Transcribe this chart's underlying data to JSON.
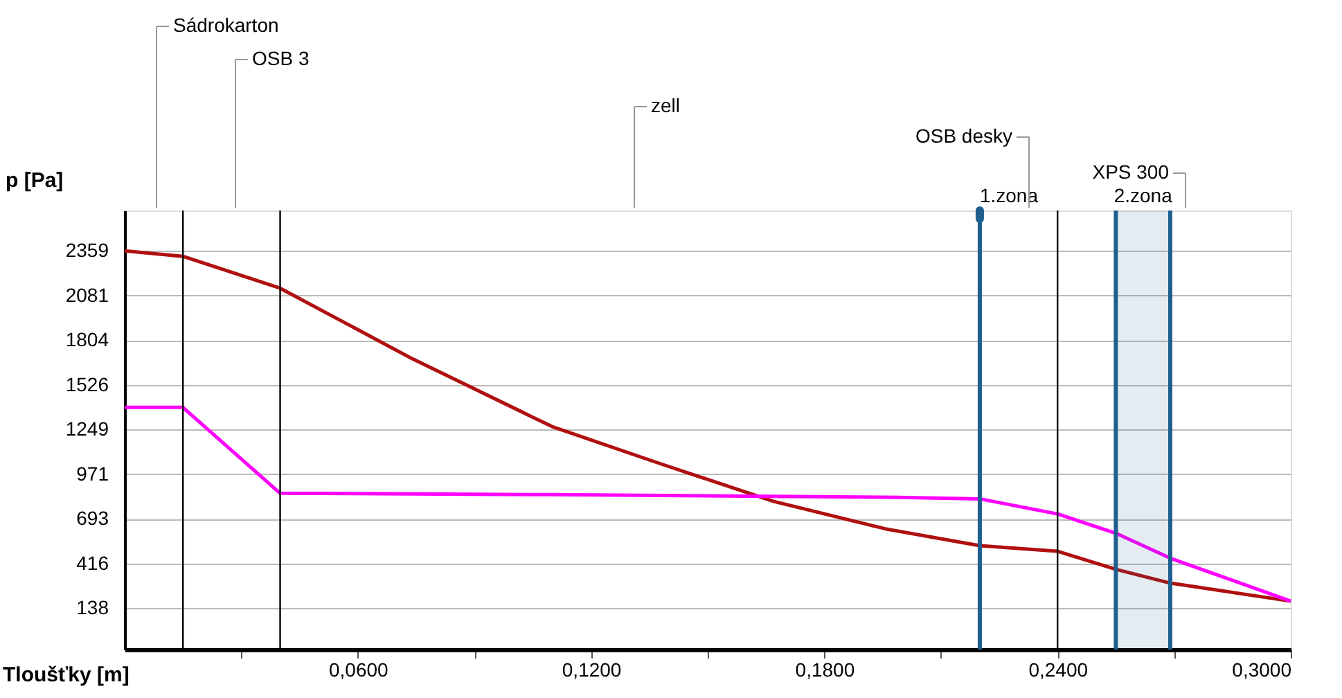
{
  "chart_data": {
    "type": "line",
    "xlabel": "Tloušťky [m]",
    "ylabel": "p [Pa]",
    "xlim": [
      0,
      0.3
    ],
    "ylim": [
      -120,
      2610
    ],
    "xticks": [
      {
        "value": 0.03,
        "label": null
      },
      {
        "value": 0.06,
        "label": "0,0600"
      },
      {
        "value": 0.09,
        "label": null
      },
      {
        "value": 0.12,
        "label": "0,1200"
      },
      {
        "value": 0.15,
        "label": null
      },
      {
        "value": 0.18,
        "label": "0,1800"
      },
      {
        "value": 0.21,
        "label": null
      },
      {
        "value": 0.24,
        "label": "0,2400"
      },
      {
        "value": 0.27,
        "label": null
      },
      {
        "value": 0.3,
        "label": "0,3000"
      }
    ],
    "yticks": [
      138,
      416,
      693,
      971,
      1249,
      1526,
      1804,
      2081,
      2359
    ],
    "grid": "y",
    "line_style": "solid",
    "marker": "none",
    "series": [
      {
        "color": "#b01010",
        "x": [
          0,
          0.015,
          0.04,
          0.074,
          0.11,
          0.138,
          0.167,
          0.196,
          0.22,
          0.24,
          0.255,
          0.269,
          0.3
        ],
        "values": [
          2359,
          2325,
          2127,
          1688,
          1266,
          1034,
          801,
          629,
          526,
          491,
          379,
          293,
          181
        ]
      },
      {
        "color": "#ff00ff",
        "x": [
          0,
          0.015,
          0.04,
          0.11,
          0.199,
          0.22,
          0.24,
          0.255,
          0.269,
          0.3
        ],
        "values": [
          1386,
          1386,
          852,
          843,
          826,
          817,
          723,
          603,
          448,
          181
        ]
      }
    ],
    "ref_lines": [
      {
        "axis": "x",
        "value": 0.015,
        "color": "#000000"
      },
      {
        "axis": "x",
        "value": 0.04,
        "color": "#000000"
      },
      {
        "axis": "x",
        "value": 0.24,
        "color": "#000000"
      },
      {
        "axis": "x",
        "value": 0.22,
        "color": "#1f5f8f",
        "label": "1.zona"
      },
      {
        "axis": "x",
        "value": 0.255,
        "color": "#1f5f8f"
      },
      {
        "axis": "x",
        "value": 0.269,
        "color": "#1f5f8f"
      }
    ],
    "bands": [
      {
        "axis": "x",
        "from": 0.255,
        "to": 0.269,
        "color": "#1f5f8f",
        "label": "2.zona"
      }
    ],
    "annotations": [
      "Sádrokarton",
      "OSB 3",
      "zell",
      "OSB desky",
      "XPS 300"
    ]
  }
}
